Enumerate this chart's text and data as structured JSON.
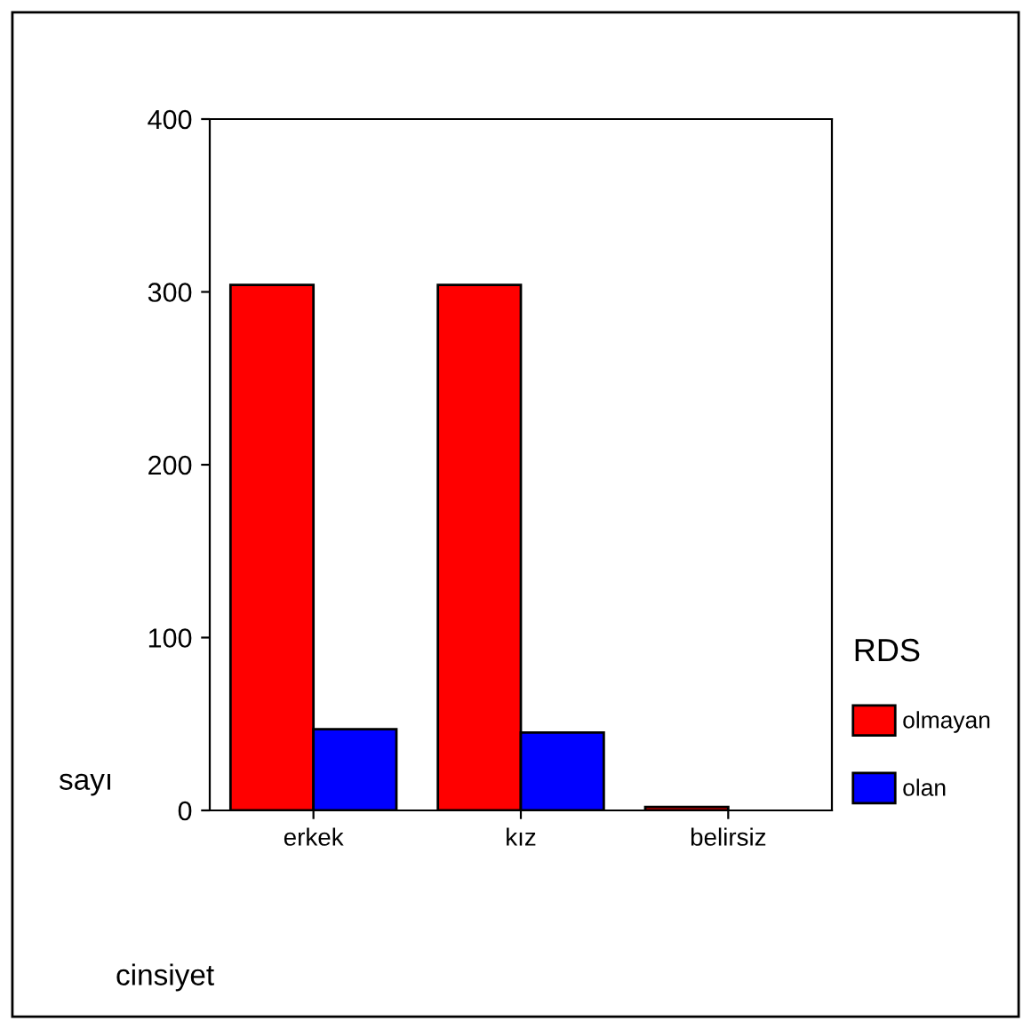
{
  "chart_data": {
    "type": "bar",
    "xlabel": "cinsiyet",
    "ylabel": "sayı",
    "legend_title": "RDS",
    "categories": [
      "erkek",
      "kız",
      "belirsiz"
    ],
    "series": [
      {
        "name": "olmayan",
        "color": "#ff0000",
        "values": [
          304,
          304,
          2
        ]
      },
      {
        "name": "olan",
        "color": "#0000ff",
        "values": [
          47,
          45,
          null
        ]
      }
    ],
    "ylim": [
      0,
      400
    ],
    "yticks": [
      0,
      100,
      200,
      300,
      400
    ],
    "grid": false,
    "legend": "right"
  }
}
